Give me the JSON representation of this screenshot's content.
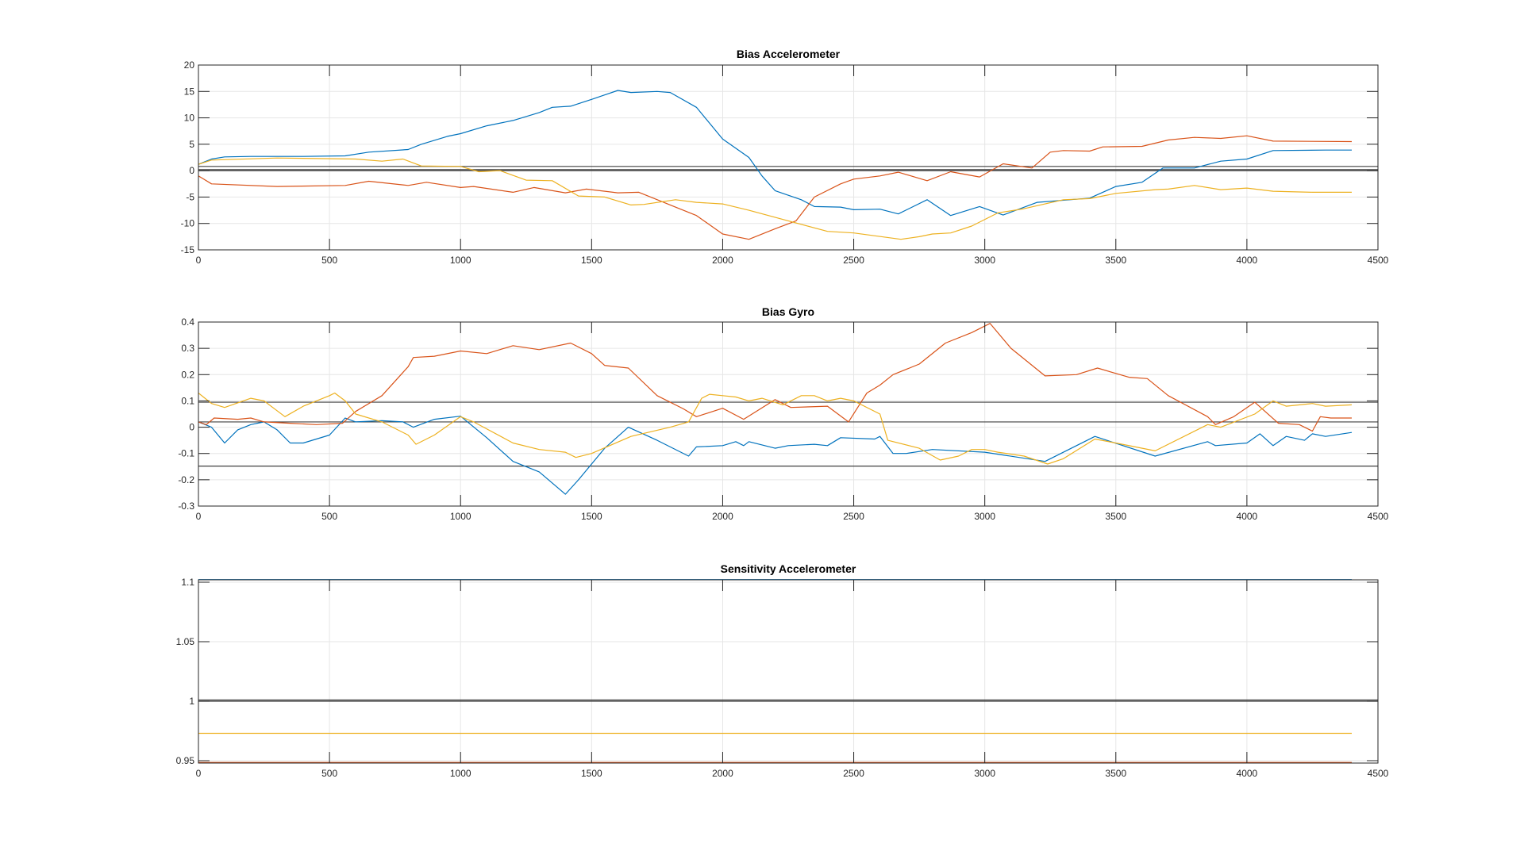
{
  "chart_data": [
    {
      "type": "line",
      "title": "Bias Accelerometer",
      "xlim": [
        0,
        4500
      ],
      "ylim": [
        -15,
        20
      ],
      "xticks": [
        "0",
        "500",
        "1000",
        "1500",
        "2000",
        "2500",
        "3000",
        "3500",
        "4000",
        "4500"
      ],
      "yticks": [
        "-15",
        "-10",
        "-5",
        "0",
        "5",
        "10",
        "15",
        "20"
      ],
      "grid": true,
      "reference_lines": [
        0.8,
        0.2,
        0
      ],
      "series": [
        {
          "name": "series1",
          "color": "#0072BD",
          "x": [
            0,
            50,
            100,
            200,
            400,
            560,
            650,
            800,
            850,
            950,
            1000,
            1100,
            1200,
            1300,
            1350,
            1420,
            1500,
            1600,
            1650,
            1750,
            1800,
            1900,
            2000,
            2100,
            2150,
            2200,
            2300,
            2350,
            2450,
            2500,
            2600,
            2670,
            2780,
            2870,
            2980,
            3070,
            3200,
            3400,
            3500,
            3600,
            3680,
            3800,
            3900,
            4000,
            4100,
            4300,
            4400
          ],
          "y": [
            1.2,
            2.2,
            2.6,
            2.7,
            2.7,
            2.8,
            3.5,
            4,
            5,
            6.5,
            7,
            8.5,
            9.5,
            11,
            12,
            12.2,
            13.5,
            15.2,
            14.8,
            15,
            14.8,
            12,
            6,
            2.5,
            -1,
            -3.8,
            -5.5,
            -6.8,
            -6.9,
            -7.4,
            -7.3,
            -8.2,
            -5.5,
            -8.5,
            -6.8,
            -8.4,
            -6,
            -5.2,
            -3,
            -2.2,
            0.5,
            0.5,
            1.8,
            2.2,
            3.8,
            3.9,
            3.9
          ]
        },
        {
          "name": "series2",
          "color": "#D95319",
          "x": [
            0,
            50,
            300,
            560,
            650,
            800,
            870,
            1000,
            1050,
            1200,
            1280,
            1400,
            1480,
            1600,
            1680,
            1800,
            1900,
            2000,
            2100,
            2200,
            2280,
            2350,
            2450,
            2500,
            2600,
            2670,
            2780,
            2870,
            2980,
            3070,
            3180,
            3250,
            3300,
            3400,
            3450,
            3600,
            3700,
            3800,
            3900,
            4000,
            4100,
            4400
          ],
          "y": [
            -1,
            -2.5,
            -3,
            -2.8,
            -2,
            -2.8,
            -2.2,
            -3.2,
            -3,
            -4.1,
            -3.2,
            -4.2,
            -3.5,
            -4.2,
            -4.1,
            -6.5,
            -8.5,
            -12,
            -13,
            -11,
            -9.5,
            -5,
            -2.5,
            -1.6,
            -1,
            -0.3,
            -1.9,
            -0.2,
            -1.2,
            1.3,
            0.5,
            3.5,
            3.8,
            3.7,
            4.5,
            4.6,
            5.8,
            6.3,
            6.1,
            6.6,
            5.6,
            5.5
          ]
        },
        {
          "name": "series3",
          "color": "#EDB120",
          "x": [
            0,
            50,
            300,
            600,
            700,
            780,
            850,
            1000,
            1070,
            1150,
            1250,
            1350,
            1450,
            1550,
            1650,
            1700,
            1820,
            1900,
            2000,
            2100,
            2250,
            2400,
            2500,
            2680,
            2750,
            2800,
            2870,
            2950,
            3050,
            3150,
            3300,
            3400,
            3500,
            3650,
            3700,
            3800,
            3900,
            4000,
            4100,
            4250,
            4400
          ],
          "y": [
            1.2,
            2,
            2.4,
            2.2,
            1.8,
            2.2,
            0.9,
            0.8,
            -0.2,
            0,
            -1.8,
            -1.9,
            -4.8,
            -5,
            -6.5,
            -6.4,
            -5.5,
            -6,
            -6.3,
            -7.5,
            -9.5,
            -11.5,
            -11.8,
            -13,
            -12.5,
            -12,
            -11.8,
            -10.5,
            -8,
            -7.2,
            -5.5,
            -5.3,
            -4.3,
            -3.6,
            -3.5,
            -2.8,
            -3.6,
            -3.3,
            -3.9,
            -4.1,
            -4.1
          ]
        }
      ]
    },
    {
      "type": "line",
      "title": "Bias Gyro",
      "xlim": [
        0,
        4500
      ],
      "ylim": [
        -0.3,
        0.4
      ],
      "xticks": [
        "0",
        "500",
        "1000",
        "1500",
        "2000",
        "2500",
        "3000",
        "3500",
        "4000",
        "4500"
      ],
      "yticks": [
        "-0.3",
        "-0.2",
        "-0.1",
        "0",
        "0.1",
        "0.2",
        "0.3",
        "0.4"
      ],
      "grid": true,
      "reference_lines": [
        0.095,
        0.02,
        -0.148
      ],
      "series": [
        {
          "name": "series1",
          "color": "#0072BD",
          "x": [
            0,
            50,
            100,
            150,
            200,
            250,
            300,
            350,
            400,
            500,
            560,
            600,
            700,
            780,
            820,
            900,
            1000,
            1100,
            1200,
            1300,
            1400,
            1450,
            1550,
            1640,
            1750,
            1870,
            1900,
            2000,
            2050,
            2080,
            2100,
            2200,
            2250,
            2350,
            2400,
            2450,
            2580,
            2600,
            2650,
            2700,
            2800,
            3000,
            3230,
            3420,
            3650,
            3850,
            3880,
            4000,
            4050,
            4100,
            4150,
            4220,
            4250,
            4300,
            4400
          ],
          "y": [
            0.02,
            0,
            -0.06,
            -0.01,
            0.01,
            0.02,
            -0.01,
            -0.06,
            -0.06,
            -0.03,
            0.035,
            0.02,
            0.025,
            0.02,
            0,
            0.03,
            0.042,
            -0.04,
            -0.13,
            -0.17,
            -0.255,
            -0.2,
            -0.08,
            0,
            -0.05,
            -0.11,
            -0.075,
            -0.07,
            -0.055,
            -0.07,
            -0.055,
            -0.08,
            -0.07,
            -0.065,
            -0.07,
            -0.04,
            -0.045,
            -0.035,
            -0.1,
            -0.1,
            -0.085,
            -0.095,
            -0.13,
            -0.035,
            -0.11,
            -0.055,
            -0.07,
            -0.06,
            -0.025,
            -0.07,
            -0.035,
            -0.05,
            -0.025,
            -0.035,
            -0.02
          ]
        },
        {
          "name": "series2",
          "color": "#D95319",
          "x": [
            0,
            30,
            60,
            150,
            200,
            250,
            350,
            450,
            550,
            600,
            700,
            800,
            820,
            900,
            1000,
            1100,
            1200,
            1300,
            1420,
            1500,
            1550,
            1640,
            1750,
            1850,
            1900,
            2000,
            2080,
            2200,
            2260,
            2400,
            2480,
            2550,
            2600,
            2650,
            2750,
            2850,
            2950,
            3020,
            3100,
            3230,
            3350,
            3430,
            3550,
            3620,
            3700,
            3850,
            3880,
            3950,
            4030,
            4120,
            4200,
            4250,
            4280,
            4320,
            4400
          ],
          "y": [
            0.02,
            0.01,
            0.035,
            0.03,
            0.035,
            0.02,
            0.015,
            0.01,
            0.015,
            0.06,
            0.12,
            0.23,
            0.265,
            0.27,
            0.29,
            0.28,
            0.31,
            0.295,
            0.32,
            0.28,
            0.235,
            0.225,
            0.12,
            0.07,
            0.04,
            0.072,
            0.03,
            0.105,
            0.075,
            0.08,
            0.02,
            0.13,
            0.16,
            0.2,
            0.24,
            0.32,
            0.36,
            0.395,
            0.3,
            0.195,
            0.2,
            0.225,
            0.19,
            0.185,
            0.12,
            0.04,
            0.01,
            0.04,
            0.095,
            0.015,
            0.01,
            -0.015,
            0.04,
            0.035,
            0.035
          ]
        },
        {
          "name": "series3",
          "color": "#EDB120",
          "x": [
            0,
            50,
            100,
            200,
            250,
            330,
            400,
            500,
            520,
            560,
            600,
            700,
            800,
            830,
            900,
            1000,
            1050,
            1200,
            1300,
            1400,
            1440,
            1500,
            1650,
            1800,
            1870,
            1920,
            1950,
            2000,
            2050,
            2100,
            2150,
            2230,
            2300,
            2350,
            2400,
            2450,
            2500,
            2600,
            2630,
            2750,
            2830,
            2900,
            2950,
            3000,
            3050,
            3150,
            3240,
            3300,
            3420,
            3500,
            3650,
            3850,
            3900,
            4030,
            4100,
            4150,
            4250,
            4300,
            4400
          ],
          "y": [
            0.13,
            0.09,
            0.075,
            0.11,
            0.1,
            0.04,
            0.08,
            0.12,
            0.13,
            0.1,
            0.05,
            0.02,
            -0.03,
            -0.065,
            -0.03,
            0.04,
            0.02,
            -0.06,
            -0.085,
            -0.095,
            -0.115,
            -0.1,
            -0.035,
            0,
            0.02,
            0.11,
            0.125,
            0.12,
            0.115,
            0.1,
            0.11,
            0.085,
            0.12,
            0.12,
            0.1,
            0.11,
            0.1,
            0.05,
            -0.05,
            -0.08,
            -0.125,
            -0.11,
            -0.085,
            -0.085,
            -0.095,
            -0.11,
            -0.14,
            -0.12,
            -0.045,
            -0.06,
            -0.09,
            0.01,
            0,
            0.05,
            0.1,
            0.08,
            0.09,
            0.08,
            0.085
          ]
        }
      ]
    },
    {
      "type": "line",
      "title": "Sensitivity Accelerometer",
      "xlim": [
        0,
        4500
      ],
      "ylim": [
        0.948,
        1.102
      ],
      "xticks": [
        "0",
        "500",
        "1000",
        "1500",
        "2000",
        "2500",
        "3000",
        "3500",
        "4000",
        "4500"
      ],
      "yticks": [
        "0.95",
        "1",
        "1.05",
        "1.1"
      ],
      "ytick_values": [
        0.95,
        1.0,
        1.05,
        1.1
      ],
      "grid": true,
      "reference_lines": [
        1.0,
        1.001
      ],
      "series": [
        {
          "name": "series1",
          "color": "#0072BD",
          "x": [
            0,
            4400
          ],
          "y": [
            1.1022,
            1.1022
          ]
        },
        {
          "name": "series2",
          "color": "#D95319",
          "x": [
            0,
            4400
          ],
          "y": [
            0.9485,
            0.9485
          ]
        },
        {
          "name": "series3",
          "color": "#EDB120",
          "x": [
            0,
            4400
          ],
          "y": [
            0.973,
            0.973
          ]
        }
      ]
    }
  ]
}
